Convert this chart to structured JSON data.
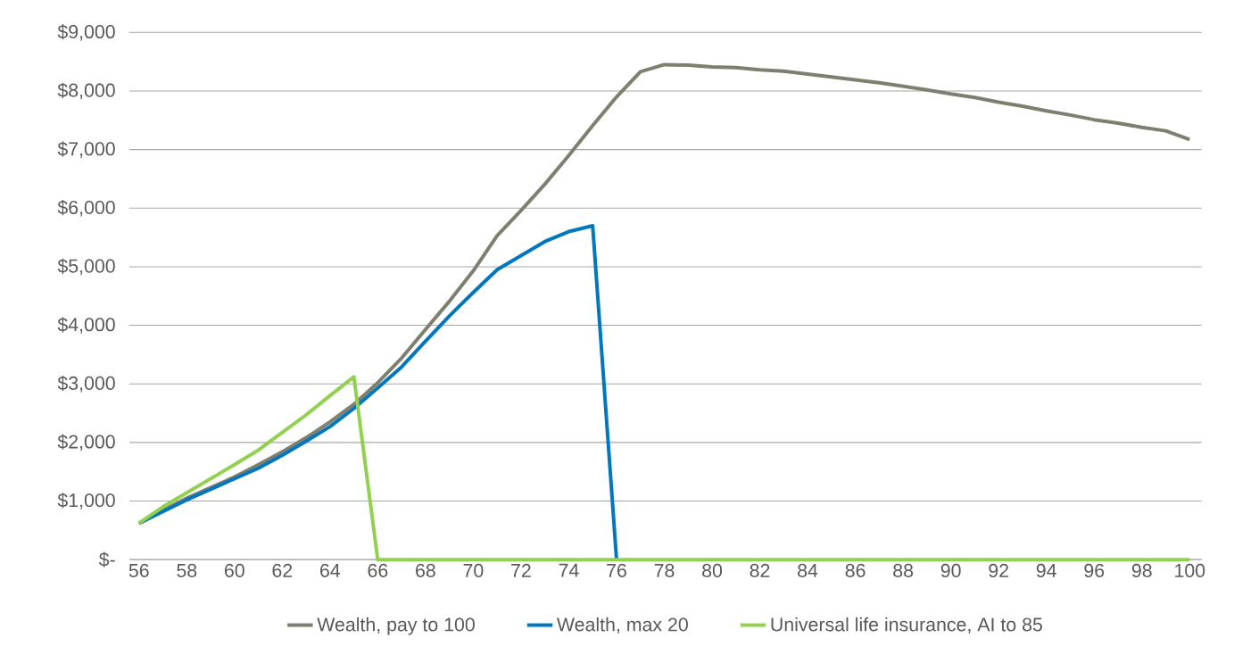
{
  "chart_data": {
    "type": "line",
    "x": [
      56,
      57,
      58,
      59,
      60,
      61,
      62,
      63,
      64,
      65,
      66,
      67,
      68,
      69,
      70,
      71,
      72,
      73,
      74,
      75,
      76,
      77,
      78,
      79,
      80,
      81,
      82,
      83,
      84,
      85,
      86,
      87,
      88,
      89,
      90,
      91,
      92,
      93,
      94,
      95,
      96,
      97,
      98,
      99,
      100
    ],
    "series": [
      {
        "name": "Wealth, pay to 100",
        "color": "#7f7f6f",
        "values": [
          620,
          840,
          1050,
          1230,
          1410,
          1620,
          1840,
          2080,
          2350,
          2650,
          3020,
          3440,
          3930,
          4410,
          4930,
          5530,
          5960,
          6410,
          6900,
          7410,
          7900,
          8330,
          8450,
          8440,
          8410,
          8400,
          8360,
          8340,
          8290,
          8240,
          8190,
          8140,
          8080,
          8020,
          7950,
          7890,
          7810,
          7740,
          7660,
          7590,
          7510,
          7450,
          7380,
          7320,
          7170
        ]
      },
      {
        "name": "Wealth, max 20",
        "color": "#0077be",
        "values": [
          620,
          820,
          1020,
          1200,
          1380,
          1560,
          1780,
          2020,
          2270,
          2580,
          2930,
          3290,
          3730,
          4160,
          4560,
          4950,
          5190,
          5430,
          5600,
          5700,
          0,
          null,
          null,
          null,
          null,
          null,
          null,
          null,
          null,
          null,
          null,
          null,
          null,
          null,
          null,
          null,
          null,
          null,
          null,
          null,
          null,
          null,
          null,
          null,
          null
        ]
      },
      {
        "name": "Universal life insurance, AI to 85",
        "color": "#92d050",
        "values": [
          620,
          900,
          1140,
          1380,
          1620,
          1870,
          2170,
          2470,
          2800,
          3120,
          0,
          0,
          0,
          0,
          0,
          0,
          0,
          0,
          0,
          0,
          0,
          0,
          0,
          0,
          0,
          0,
          0,
          0,
          0,
          0,
          0,
          0,
          0,
          0,
          0,
          0,
          0,
          0,
          0,
          0,
          0,
          0,
          0,
          0,
          0
        ]
      }
    ],
    "xlim": [
      55.6,
      100.5
    ],
    "xticks": [
      56,
      58,
      60,
      62,
      64,
      66,
      68,
      70,
      72,
      74,
      76,
      78,
      80,
      82,
      84,
      86,
      88,
      90,
      92,
      94,
      96,
      98,
      100
    ],
    "ylim": [
      0,
      9000
    ],
    "yticks": [
      {
        "value": 0,
        "label": "$-"
      },
      {
        "value": 1000,
        "label": "$1,000"
      },
      {
        "value": 2000,
        "label": "$2,000"
      },
      {
        "value": 3000,
        "label": "$3,000"
      },
      {
        "value": 4000,
        "label": "$4,000"
      },
      {
        "value": 5000,
        "label": "$5,000"
      },
      {
        "value": 6000,
        "label": "$6,000"
      },
      {
        "value": 7000,
        "label": "$7,000"
      },
      {
        "value": 8000,
        "label": "$8,000"
      },
      {
        "value": 9000,
        "label": "$9,000"
      }
    ],
    "grid": "y",
    "legend": "bottom",
    "marker": "none",
    "line_style": "solid"
  }
}
